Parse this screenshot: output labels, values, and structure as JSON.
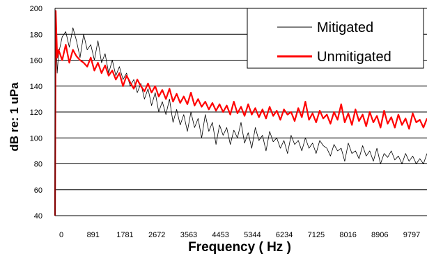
{
  "chart_data": {
    "type": "line",
    "title": "",
    "xlabel": "Frequency ( Hz )",
    "ylabel": "dB re: 1 uPa",
    "ylim": [
      40,
      200
    ],
    "y_ticks": [
      40,
      60,
      80,
      100,
      120,
      140,
      160,
      180,
      200
    ],
    "xlim": [
      0,
      10400
    ],
    "x_ticks": [
      0,
      891,
      1781,
      2672,
      3563,
      4453,
      5344,
      6234,
      7125,
      8016,
      8906,
      9797
    ],
    "grid": "horizontal",
    "legend_position": "top-right",
    "series": [
      {
        "name": "Mitigated",
        "color": "#000000",
        "x": [
          0,
          20,
          60,
          100,
          200,
          300,
          400,
          500,
          600,
          700,
          800,
          900,
          1000,
          1100,
          1200,
          1300,
          1400,
          1500,
          1600,
          1700,
          1800,
          1900,
          2000,
          2100,
          2200,
          2300,
          2400,
          2500,
          2600,
          2700,
          2800,
          2900,
          3000,
          3100,
          3200,
          3300,
          3400,
          3500,
          3600,
          3700,
          3800,
          3900,
          4000,
          4100,
          4200,
          4300,
          4400,
          4500,
          4600,
          4700,
          4800,
          4900,
          5000,
          5100,
          5200,
          5300,
          5400,
          5500,
          5600,
          5700,
          5800,
          5900,
          6000,
          6100,
          6200,
          6300,
          6400,
          6500,
          6600,
          6700,
          6800,
          6900,
          7000,
          7100,
          7200,
          7300,
          7400,
          7500,
          7600,
          7700,
          7800,
          7900,
          8000,
          8100,
          8200,
          8300,
          8400,
          8500,
          8600,
          8700,
          8800,
          8900,
          9000,
          9100,
          9200,
          9300,
          9400,
          9500,
          9600,
          9700,
          9800,
          9900,
          10000,
          10100,
          10200,
          10300,
          10400
        ],
        "values": [
          40,
          190,
          150,
          165,
          178,
          182,
          170,
          185,
          175,
          162,
          180,
          168,
          172,
          160,
          175,
          158,
          165,
          150,
          160,
          148,
          155,
          145,
          150,
          140,
          145,
          135,
          142,
          130,
          138,
          125,
          135,
          120,
          128,
          118,
          130,
          112,
          122,
          110,
          118,
          105,
          120,
          108,
          115,
          100,
          118,
          105,
          112,
          95,
          110,
          102,
          108,
          95,
          106,
          100,
          112,
          96,
          104,
          92,
          108,
          98,
          102,
          90,
          105,
          97,
          100,
          92,
          98,
          88,
          102,
          95,
          98,
          90,
          100,
          92,
          96,
          88,
          98,
          94,
          92,
          86,
          95,
          90,
          92,
          82,
          96,
          88,
          90,
          84,
          94,
          86,
          90,
          82,
          92,
          80,
          88,
          85,
          90,
          83,
          86,
          80,
          88,
          82,
          86,
          80,
          84,
          80,
          88
        ]
      },
      {
        "name": "Unmitigated",
        "color": "#ff0000",
        "x": [
          0,
          20,
          60,
          100,
          200,
          300,
          400,
          500,
          600,
          700,
          800,
          900,
          1000,
          1100,
          1200,
          1300,
          1400,
          1500,
          1600,
          1700,
          1800,
          1900,
          2000,
          2100,
          2200,
          2300,
          2400,
          2500,
          2600,
          2700,
          2800,
          2900,
          3000,
          3100,
          3200,
          3300,
          3400,
          3500,
          3600,
          3700,
          3800,
          3900,
          4000,
          4100,
          4200,
          4300,
          4400,
          4500,
          4600,
          4700,
          4800,
          4900,
          5000,
          5100,
          5200,
          5300,
          5400,
          5500,
          5600,
          5700,
          5800,
          5900,
          6000,
          6100,
          6200,
          6300,
          6400,
          6500,
          6600,
          6700,
          6800,
          6900,
          7000,
          7100,
          7200,
          7300,
          7400,
          7500,
          7600,
          7700,
          7800,
          7900,
          8000,
          8100,
          8200,
          8300,
          8400,
          8500,
          8600,
          8700,
          8800,
          8900,
          9000,
          9100,
          9200,
          9300,
          9400,
          9500,
          9600,
          9700,
          9800,
          9900,
          10000,
          10100,
          10200,
          10300,
          10400
        ],
        "values": [
          40,
          198,
          162,
          168,
          160,
          172,
          158,
          168,
          163,
          160,
          158,
          155,
          162,
          152,
          158,
          150,
          156,
          148,
          152,
          145,
          150,
          140,
          148,
          143,
          138,
          145,
          140,
          136,
          142,
          135,
          140,
          132,
          137,
          130,
          138,
          128,
          134,
          127,
          132,
          126,
          135,
          125,
          130,
          124,
          128,
          122,
          127,
          121,
          126,
          120,
          125,
          118,
          128,
          119,
          124,
          117,
          126,
          118,
          123,
          116,
          122,
          115,
          124,
          117,
          121,
          114,
          122,
          118,
          120,
          113,
          123,
          116,
          128,
          114,
          119,
          112,
          121,
          115,
          118,
          111,
          120,
          114,
          126,
          112,
          119,
          110,
          122,
          113,
          118,
          109,
          120,
          112,
          117,
          108,
          121,
          111,
          116,
          108,
          118,
          110,
          115,
          107,
          119,
          112,
          114,
          108,
          115
        ]
      }
    ]
  }
}
